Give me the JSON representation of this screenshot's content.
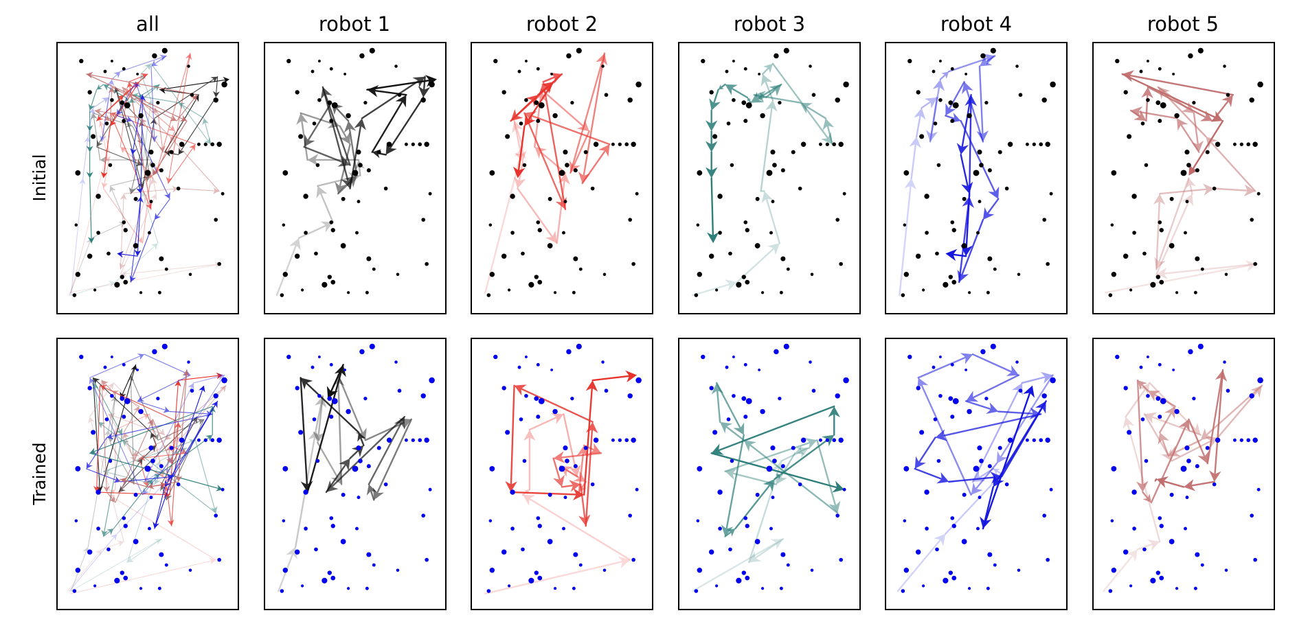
{
  "chart_data": {
    "type": "scatter",
    "column_titles": [
      "all",
      "robot 1",
      "robot 2",
      "robot 3",
      "robot 4",
      "robot 5"
    ],
    "row_labels": [
      "Initial",
      "Trained"
    ],
    "xlim": [
      0,
      1
    ],
    "ylim": [
      0,
      1
    ],
    "grid": false,
    "axis_ticks": false,
    "point_colors": {
      "Initial": "#000000",
      "Trained": "#0000ee"
    },
    "robot_colors": [
      "#111111",
      "#e8332c",
      "#2e7f7a",
      "#1515e0",
      "#c06a6a"
    ],
    "points": [
      [
        0.11,
        0.95,
        0.55
      ],
      [
        0.25,
        0.91,
        0.35
      ],
      [
        0.29,
        0.95,
        0.2
      ],
      [
        0.36,
        0.92,
        0.35
      ],
      [
        0.44,
        0.9,
        0.2
      ],
      [
        0.54,
        0.97,
        0.7
      ],
      [
        0.6,
        0.99,
        0.8
      ],
      [
        0.74,
        0.93,
        0.3
      ],
      [
        0.95,
        0.86,
        0.85
      ],
      [
        0.16,
        0.83,
        0.55
      ],
      [
        0.29,
        0.8,
        0.45
      ],
      [
        0.35,
        0.79,
        0.6
      ],
      [
        0.38,
        0.78,
        0.9
      ],
      [
        0.46,
        0.74,
        0.7
      ],
      [
        0.56,
        0.79,
        0.4
      ],
      [
        0.76,
        0.82,
        0.45
      ],
      [
        0.9,
        0.8,
        0.7
      ],
      [
        0.18,
        0.66,
        0.65
      ],
      [
        0.26,
        0.71,
        0.45
      ],
      [
        0.36,
        0.72,
        0.5
      ],
      [
        0.52,
        0.6,
        0.65
      ],
      [
        0.64,
        0.6,
        0.5
      ],
      [
        0.7,
        0.63,
        0.7
      ],
      [
        0.8,
        0.63,
        0.35
      ],
      [
        0.84,
        0.63,
        0.4
      ],
      [
        0.88,
        0.63,
        0.45
      ],
      [
        0.92,
        0.63,
        0.7
      ],
      [
        0.09,
        0.52,
        0.75
      ],
      [
        0.28,
        0.55,
        0.45
      ],
      [
        0.5,
        0.52,
        0.9
      ],
      [
        0.53,
        0.55,
        0.6
      ],
      [
        0.58,
        0.53,
        0.5
      ],
      [
        0.68,
        0.46,
        0.45
      ],
      [
        0.21,
        0.43,
        0.7
      ],
      [
        0.43,
        0.42,
        0.5
      ],
      [
        0.52,
        0.41,
        0.35
      ],
      [
        0.94,
        0.44,
        0.35
      ],
      [
        0.08,
        0.32,
        0.3
      ],
      [
        0.21,
        0.29,
        0.45
      ],
      [
        0.36,
        0.33,
        0.45
      ],
      [
        0.51,
        0.29,
        0.35
      ],
      [
        0.9,
        0.34,
        0.45
      ],
      [
        0.16,
        0.2,
        0.7
      ],
      [
        0.27,
        0.21,
        0.45
      ],
      [
        0.37,
        0.3,
        0.55
      ],
      [
        0.43,
        0.24,
        0.75
      ],
      [
        0.58,
        0.19,
        0.65
      ],
      [
        0.61,
        0.15,
        0.35
      ],
      [
        0.75,
        0.13,
        0.3
      ],
      [
        0.92,
        0.17,
        0.45
      ],
      [
        0.09,
        0.13,
        0.7
      ],
      [
        0.35,
        0.12,
        0.55
      ],
      [
        0.32,
        0.09,
        0.8
      ],
      [
        0.37,
        0.1,
        0.6
      ],
      [
        0.46,
        0.06,
        0.25
      ],
      [
        0.07,
        0.05,
        0.45
      ],
      [
        0.57,
        0.06,
        0.35
      ],
      [
        0.19,
        0.07,
        0.25
      ]
    ],
    "robot_routes": {
      "Initial": [
        [
          [
            0.04,
            0.05
          ],
          [
            0.17,
            0.27
          ],
          [
            0.37,
            0.33
          ],
          [
            0.28,
            0.47
          ],
          [
            0.53,
            0.51
          ],
          [
            0.52,
            0.57
          ],
          [
            0.22,
            0.57
          ],
          [
            0.18,
            0.75
          ],
          [
            0.41,
            0.7
          ],
          [
            0.47,
            0.63
          ],
          [
            0.4,
            0.44
          ],
          [
            0.51,
            0.51
          ],
          [
            0.46,
            0.72
          ],
          [
            0.36,
            0.79
          ],
          [
            0.2,
            0.62
          ],
          [
            0.47,
            0.55
          ],
          [
            0.31,
            0.85
          ],
          [
            0.47,
            0.46
          ],
          [
            0.54,
            0.73
          ],
          [
            0.91,
            0.89
          ],
          [
            0.9,
            0.81
          ],
          [
            0.68,
            0.59
          ],
          [
            0.6,
            0.6
          ],
          [
            0.8,
            0.82
          ],
          [
            0.57,
            0.84
          ],
          [
            0.98,
            0.88
          ]
        ],
        [
          [
            0.05,
            0.06
          ],
          [
            0.27,
            0.62
          ],
          [
            0.22,
            0.72
          ],
          [
            0.27,
            0.56
          ],
          [
            0.24,
            0.46
          ],
          [
            0.47,
            0.25
          ],
          [
            0.52,
            0.52
          ],
          [
            0.34,
            0.62
          ],
          [
            0.38,
            0.84
          ],
          [
            0.66,
            0.68
          ],
          [
            0.55,
            0.52
          ],
          [
            0.75,
            0.98
          ],
          [
            0.62,
            0.48
          ],
          [
            0.78,
            0.63
          ],
          [
            0.28,
            0.75
          ],
          [
            0.52,
            0.38
          ],
          [
            0.39,
            0.87
          ],
          [
            0.5,
            0.9
          ],
          [
            0.2,
            0.72
          ],
          [
            0.36,
            0.82
          ],
          [
            0.45,
            0.87
          ],
          [
            0.28,
            0.7
          ],
          [
            0.24,
            0.5
          ]
        ],
        [
          [
            0.05,
            0.05
          ],
          [
            0.31,
            0.1
          ],
          [
            0.56,
            0.25
          ],
          [
            0.47,
            0.45
          ],
          [
            0.45,
            0.45
          ],
          [
            0.52,
            0.8
          ],
          [
            0.46,
            0.9
          ],
          [
            0.52,
            0.94
          ],
          [
            0.87,
            0.63
          ],
          [
            0.83,
            0.73
          ],
          [
            0.68,
            0.79
          ],
          [
            0.41,
            0.82
          ],
          [
            0.48,
            0.81
          ],
          [
            0.57,
            0.86
          ],
          [
            0.39,
            0.79
          ],
          [
            0.37,
            0.81
          ],
          [
            0.24,
            0.86
          ],
          [
            0.2,
            0.84
          ],
          [
            0.16,
            0.76
          ],
          [
            0.16,
            0.68
          ],
          [
            0.16,
            0.6
          ],
          [
            0.16,
            0.5
          ],
          [
            0.17,
            0.25
          ]
        ],
        [
          [
            0.05,
            0.05
          ],
          [
            0.12,
            0.5
          ],
          [
            0.15,
            0.66
          ],
          [
            0.18,
            0.77
          ],
          [
            0.27,
            0.81
          ],
          [
            0.23,
            0.64
          ],
          [
            0.29,
            0.88
          ],
          [
            0.34,
            0.91
          ],
          [
            0.61,
            0.97
          ],
          [
            0.52,
            0.93
          ],
          [
            0.54,
            0.64
          ],
          [
            0.43,
            0.87
          ],
          [
            0.32,
            0.74
          ],
          [
            0.41,
            0.72
          ],
          [
            0.63,
            0.42
          ],
          [
            0.54,
            0.34
          ],
          [
            0.4,
            0.1
          ],
          [
            0.46,
            0.43
          ],
          [
            0.47,
            0.82
          ],
          [
            0.41,
            0.59
          ],
          [
            0.46,
            0.44
          ],
          [
            0.44,
            0.2
          ],
          [
            0.32,
            0.21
          ]
        ],
        [
          [
            0.04,
            0.06
          ],
          [
            0.93,
            0.17
          ],
          [
            0.34,
            0.13
          ],
          [
            0.55,
            0.44
          ],
          [
            0.53,
            0.5
          ],
          [
            0.34,
            0.15
          ],
          [
            0.36,
            0.44
          ],
          [
            0.68,
            0.46
          ],
          [
            0.92,
            0.45
          ],
          [
            0.63,
            0.66
          ],
          [
            0.35,
            0.85
          ],
          [
            0.56,
            0.75
          ],
          [
            0.59,
            0.6
          ],
          [
            0.46,
            0.73
          ],
          [
            0.19,
            0.76
          ],
          [
            0.28,
            0.72
          ],
          [
            0.29,
            0.85
          ],
          [
            0.67,
            0.72
          ],
          [
            0.79,
            0.82
          ],
          [
            0.14,
            0.9
          ],
          [
            0.73,
            0.72
          ],
          [
            0.53,
            0.51
          ]
        ]
      ],
      "Trained": [
        [
          [
            0.05,
            0.05
          ],
          [
            0.15,
            0.22
          ],
          [
            0.27,
            0.67
          ],
          [
            0.31,
            0.8
          ],
          [
            0.28,
            0.62
          ],
          [
            0.42,
            0.46
          ],
          [
            0.4,
            0.88
          ],
          [
            0.56,
            0.63
          ],
          [
            0.83,
            0.71
          ],
          [
            0.61,
            0.4
          ],
          [
            0.58,
            0.46
          ],
          [
            0.79,
            0.72
          ],
          [
            0.33,
            0.43
          ],
          [
            0.47,
            0.56
          ],
          [
            0.55,
            0.61
          ],
          [
            0.52,
            0.66
          ],
          [
            0.18,
            0.87
          ],
          [
            0.22,
            0.43
          ],
          [
            0.43,
            0.92
          ],
          [
            0.34,
            0.79
          ]
        ],
        [
          [
            0.05,
            0.04
          ],
          [
            0.9,
            0.17
          ],
          [
            0.27,
            0.42
          ],
          [
            0.31,
            0.44
          ],
          [
            0.31,
            0.67
          ],
          [
            0.51,
            0.73
          ],
          [
            0.59,
            0.49
          ],
          [
            0.49,
            0.53
          ],
          [
            0.64,
            0.47
          ],
          [
            0.6,
            0.43
          ],
          [
            0.63,
            0.61
          ],
          [
            0.73,
            0.58
          ],
          [
            0.45,
            0.56
          ],
          [
            0.5,
            0.45
          ],
          [
            0.61,
            0.46
          ],
          [
            0.64,
            0.3
          ],
          [
            0.68,
            0.7
          ],
          [
            0.22,
            0.84
          ],
          [
            0.2,
            0.43
          ],
          [
            0.63,
            0.42
          ],
          [
            0.68,
            0.86
          ],
          [
            0.94,
            0.88
          ]
        ],
        [
          [
            0.05,
            0.05
          ],
          [
            0.58,
            0.25
          ],
          [
            0.38,
            0.16
          ],
          [
            0.57,
            0.55
          ],
          [
            0.73,
            0.6
          ],
          [
            0.65,
            0.58
          ],
          [
            0.54,
            0.46
          ],
          [
            0.24,
            0.51
          ],
          [
            0.78,
            0.63
          ],
          [
            0.9,
            0.35
          ],
          [
            0.35,
            0.63
          ],
          [
            0.21,
            0.7
          ],
          [
            0.19,
            0.85
          ],
          [
            0.35,
            0.65
          ],
          [
            0.24,
            0.26
          ],
          [
            0.3,
            0.29
          ],
          [
            0.53,
            0.48
          ],
          [
            0.57,
            0.5
          ],
          [
            0.88,
            0.65
          ],
          [
            0.88,
            0.76
          ],
          [
            0.16,
            0.58
          ],
          [
            0.94,
            0.44
          ]
        ],
        [
          [
            0.04,
            0.05
          ],
          [
            0.32,
            0.27
          ],
          [
            0.65,
            0.5
          ],
          [
            0.6,
            0.52
          ],
          [
            0.48,
            0.47
          ],
          [
            0.77,
            0.85
          ],
          [
            0.95,
            0.88
          ],
          [
            0.62,
            0.54
          ],
          [
            0.47,
            0.42
          ],
          [
            0.16,
            0.87
          ],
          [
            0.48,
            0.96
          ],
          [
            0.75,
            0.88
          ],
          [
            0.44,
            0.78
          ],
          [
            0.63,
            0.74
          ],
          [
            0.88,
            0.73
          ],
          [
            0.26,
            0.64
          ],
          [
            0.14,
            0.52
          ],
          [
            0.34,
            0.47
          ],
          [
            0.65,
            0.49
          ],
          [
            0.91,
            0.78
          ],
          [
            0.6,
            0.45
          ],
          [
            0.54,
            0.29
          ],
          [
            0.83,
            0.84
          ]
        ],
        [
          [
            0.03,
            0.05
          ],
          [
            0.23,
            0.21
          ],
          [
            0.36,
            0.24
          ],
          [
            0.16,
            0.72
          ],
          [
            0.3,
            0.85
          ],
          [
            0.6,
            0.65
          ],
          [
            0.27,
            0.73
          ],
          [
            0.43,
            0.55
          ],
          [
            0.7,
            0.64
          ],
          [
            0.96,
            0.84
          ],
          [
            0.6,
            0.63
          ],
          [
            0.41,
            0.57
          ],
          [
            0.36,
            0.66
          ],
          [
            0.45,
            0.76
          ],
          [
            0.29,
            0.82
          ],
          [
            0.23,
            0.86
          ],
          [
            0.26,
            0.43
          ],
          [
            0.31,
            0.39
          ],
          [
            0.53,
            0.71
          ],
          [
            0.64,
            0.54
          ],
          [
            0.73,
            0.9
          ],
          [
            0.68,
            0.47
          ],
          [
            0.5,
            0.45
          ],
          [
            0.34,
            0.48
          ],
          [
            0.33,
            0.47
          ]
        ]
      ]
    }
  }
}
